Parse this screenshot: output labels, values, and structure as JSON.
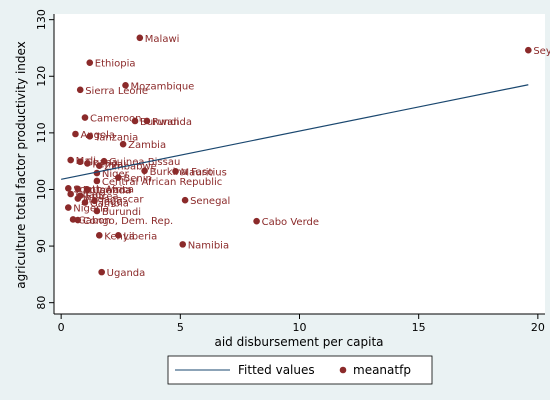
{
  "chart_data": {
    "type": "scatter",
    "title": "",
    "xlabel": "aid disbursement per capita",
    "ylabel": "agriculture total factor productivity index",
    "xlim": [
      -0.3,
      20.3
    ],
    "ylim": [
      78,
      131
    ],
    "x_ticks": [
      0,
      5,
      10,
      15,
      20
    ],
    "y_ticks": [
      80,
      90,
      100,
      110,
      120,
      130
    ],
    "legend_position": "bottom",
    "grid": false,
    "colors": {
      "marker": "#8b2a2a",
      "fit_line": "#1a476f",
      "label": "#8b2a2a",
      "plot_bg": "#ffffff",
      "outer_bg": "#eaf2f3"
    },
    "series": [
      {
        "name": "meanatfp",
        "kind": "scatter",
        "points": [
          {
            "label": "Malawi",
            "x": 3.3,
            "y": 126.8
          },
          {
            "label": "Seychelles",
            "x": 19.6,
            "y": 124.6
          },
          {
            "label": "Ethiopia",
            "x": 1.2,
            "y": 122.4
          },
          {
            "label": "Mozambique",
            "x": 2.7,
            "y": 118.4
          },
          {
            "label": "Sierra Leone",
            "x": 0.8,
            "y": 117.6
          },
          {
            "label": "Cameroon",
            "x": 1.0,
            "y": 112.7
          },
          {
            "label": "Rwanda",
            "x": 3.6,
            "y": 112.1
          },
          {
            "label": "Burundi",
            "x": 3.1,
            "y": 112.1
          },
          {
            "label": "Angola",
            "x": 0.6,
            "y": 109.8
          },
          {
            "label": "Tanzania",
            "x": 1.2,
            "y": 109.4
          },
          {
            "label": "Zambia",
            "x": 2.6,
            "y": 108.0
          },
          {
            "label": "Mali",
            "x": 0.4,
            "y": 105.2
          },
          {
            "label": "Guinea-Bissau",
            "x": 1.8,
            "y": 105.0
          },
          {
            "label": "Ghana",
            "x": 0.8,
            "y": 104.9
          },
          {
            "label": "Kenya",
            "x": 1.1,
            "y": 104.6
          },
          {
            "label": "Zimbabwe",
            "x": 1.6,
            "y": 104.2
          },
          {
            "label": "Burkina Faso",
            "x": 3.5,
            "y": 103.3
          },
          {
            "label": "Mauritius",
            "x": 4.8,
            "y": 103.2
          },
          {
            "label": "Niger",
            "x": 1.5,
            "y": 102.9
          },
          {
            "label": "Benin",
            "x": 2.4,
            "y": 102.1
          },
          {
            "label": "Central African Republic",
            "x": 1.5,
            "y": 101.5
          },
          {
            "label": "South Africa",
            "x": 0.3,
            "y": 100.2
          },
          {
            "label": "Botswana",
            "x": 0.7,
            "y": 100.1
          },
          {
            "label": "Uganda",
            "x": 1.1,
            "y": 100.0
          },
          {
            "label": "Chad",
            "x": 0.4,
            "y": 99.2
          },
          {
            "label": "Eritrea",
            "x": 0.8,
            "y": 98.9
          },
          {
            "label": "Madagascar",
            "x": 0.7,
            "y": 98.4
          },
          {
            "label": "Togo",
            "x": 1.4,
            "y": 98.0
          },
          {
            "label": "Gambia",
            "x": 1.0,
            "y": 97.7
          },
          {
            "label": "Senegal",
            "x": 5.2,
            "y": 98.1
          },
          {
            "label": "Nigeria",
            "x": 0.3,
            "y": 96.8
          },
          {
            "label": "Burundi",
            "x": 1.5,
            "y": 96.2
          },
          {
            "label": "Cabo Verde",
            "x": 8.2,
            "y": 94.4
          },
          {
            "label": "Gabon",
            "x": 0.5,
            "y": 94.7
          },
          {
            "label": "Congo, Dem. Rep.",
            "x": 0.7,
            "y": 94.6
          },
          {
            "label": "Kenya",
            "x": 1.6,
            "y": 91.9
          },
          {
            "label": "Liberia",
            "x": 2.4,
            "y": 91.9
          },
          {
            "label": "Namibia",
            "x": 5.1,
            "y": 90.3
          },
          {
            "label": "Uganda",
            "x": 1.7,
            "y": 85.4
          }
        ]
      },
      {
        "name": "Fitted values",
        "kind": "line",
        "x": [
          0,
          19.6
        ],
        "y": [
          101.8,
          118.5
        ]
      }
    ]
  }
}
